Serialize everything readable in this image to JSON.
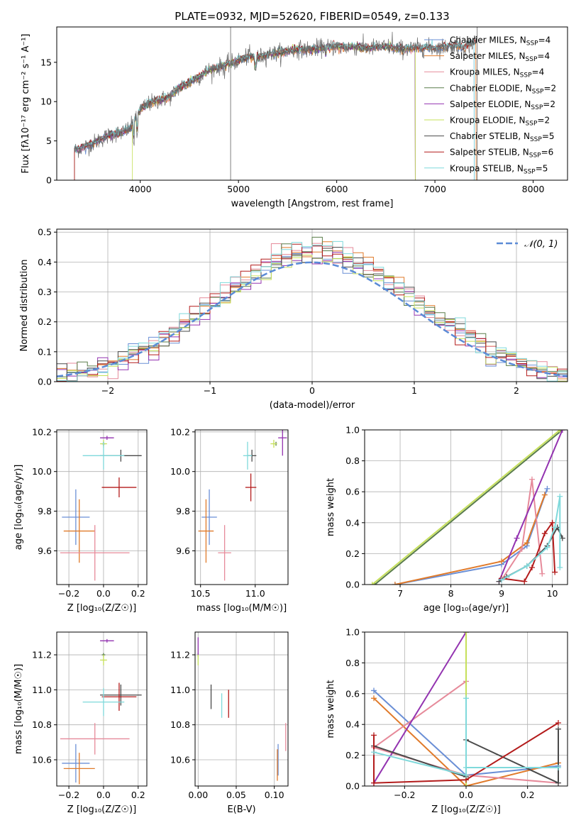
{
  "figure": {
    "title": "PLATE=0932, MJD=52620, FIBERID=0549, z=0.133"
  },
  "legend_items": [
    {
      "name": "Chabrier MILES",
      "nssp": "4"
    },
    {
      "name": "Salpeter MILES",
      "nssp": "4"
    },
    {
      "name": "Kroupa MILES",
      "nssp": "4"
    },
    {
      "name": "Chabrier ELODIE",
      "nssp": "2"
    },
    {
      "name": "Salpeter ELODIE",
      "nssp": "2"
    },
    {
      "name": "Kroupa ELODIE",
      "nssp": "2"
    },
    {
      "name": "Chabrier STELIB",
      "nssp": "5"
    },
    {
      "name": "Salpeter STELIB",
      "nssp": "6"
    },
    {
      "name": "Kroupa STELIB",
      "nssp": "5"
    }
  ],
  "colors": {
    "chab_miles": "#6a8fd6",
    "salp_miles": "#e07a2a",
    "krou_miles": "#e68a9a",
    "chab_elodie": "#5a7d4a",
    "salp_elodie": "#9333b0",
    "krou_elodie": "#c6e05a",
    "chab_stelib": "#4a4a4a",
    "salp_stelib": "#b31b1b",
    "krou_stelib": "#7fd9db",
    "gauss": "#5b8bd6"
  },
  "chart_data": [
    {
      "type": "line",
      "name": "spectrum",
      "xlabel": "wavelength [Angstrom, rest frame]",
      "ylabel": "Flux [fλ10⁻¹⁷ erg cm⁻² s⁻¹ A⁻¹]",
      "xlim": [
        3150,
        8350
      ],
      "ylim": [
        0,
        19.5
      ],
      "xticks": [
        4000,
        5000,
        6000,
        7000,
        8000
      ],
      "yticks": [
        0,
        5,
        10,
        15
      ],
      "continuum": [
        [
          3330,
          3.8
        ],
        [
          3400,
          4.1
        ],
        [
          3500,
          4.6
        ],
        [
          3600,
          5.2
        ],
        [
          3700,
          5.8
        ],
        [
          3800,
          6.0
        ],
        [
          3900,
          6.6
        ],
        [
          4000,
          9.0
        ],
        [
          4100,
          9.8
        ],
        [
          4200,
          10.2
        ],
        [
          4300,
          10.6
        ],
        [
          4400,
          11.8
        ],
        [
          4500,
          12.4
        ],
        [
          4600,
          13.2
        ],
        [
          4700,
          14.0
        ],
        [
          4800,
          14.4
        ],
        [
          4900,
          14.8
        ],
        [
          5000,
          15.2
        ],
        [
          5100,
          15.8
        ],
        [
          5200,
          15.6
        ],
        [
          5300,
          16.0
        ],
        [
          5400,
          16.2
        ],
        [
          5500,
          16.4
        ],
        [
          5600,
          16.7
        ],
        [
          5700,
          16.6
        ],
        [
          5800,
          16.8
        ],
        [
          5900,
          16.9
        ],
        [
          6000,
          17.0
        ],
        [
          6100,
          16.9
        ],
        [
          6200,
          17.0
        ],
        [
          6300,
          16.8
        ],
        [
          6400,
          16.9
        ],
        [
          6500,
          17.0
        ],
        [
          6600,
          16.8
        ],
        [
          6700,
          16.7
        ],
        [
          6800,
          16.8
        ],
        [
          6900,
          16.9
        ],
        [
          7000,
          16.8
        ],
        [
          7100,
          17.0
        ],
        [
          7200,
          17.1
        ],
        [
          7300,
          16.9
        ],
        [
          7400,
          17.6
        ],
        [
          7430,
          17.8
        ]
      ],
      "vlines": [
        4920,
        7430
      ],
      "series_end": {
        "chab_miles": 7400,
        "salp_miles": 7420,
        "krou_miles": 6800,
        "chab_elodie": 6800,
        "salp_elodie": 6800,
        "krou_elodie": 6800,
        "chab_stelib": 7430,
        "salp_stelib": 7430,
        "krou_stelib": 7400
      },
      "series_start": {
        "chab_miles": 3330,
        "salp_miles": 3330,
        "krou_miles": 3330,
        "chab_elodie": 3330,
        "salp_elodie": 3330,
        "krou_elodie": 3920,
        "chab_stelib": 3330,
        "salp_stelib": 3330,
        "krou_stelib": 3330
      }
    },
    {
      "type": "histogram",
      "name": "residuals",
      "xlabel": "(data-model)/error",
      "ylabel": "Normed distribution",
      "xlim": [
        -2.5,
        2.5
      ],
      "ylim": [
        0,
        0.51
      ],
      "xticks": [
        -2,
        -1,
        0,
        1,
        2
      ],
      "yticks": [
        0.0,
        0.1,
        0.2,
        0.3,
        0.4,
        0.5
      ],
      "bin_edges_start": -2.5,
      "bin_width": 0.1,
      "gauss_label": "𝒩(0, 1)"
    },
    {
      "type": "scatter",
      "name": "age_vs_Z",
      "xlabel": "Z [log₁₀(Z/Z☉)]",
      "ylabel": "age  [log₁₀(age/yr)]",
      "xlim": [
        -0.27,
        0.25
      ],
      "ylim": [
        9.43,
        10.21
      ],
      "xticks": [
        -0.2,
        0.0,
        0.2
      ],
      "yticks": [
        9.6,
        9.8,
        10.0,
        10.2
      ],
      "points": [
        {
          "s": "chab_miles",
          "x": -0.16,
          "y": 9.77,
          "xe": 0.08,
          "ye": 0.14
        },
        {
          "s": "salp_miles",
          "x": -0.14,
          "y": 9.7,
          "xe": 0.09,
          "ye": 0.16
        },
        {
          "s": "krou_miles",
          "x": -0.05,
          "y": 9.59,
          "xe": 0.2,
          "ye": 0.14
        },
        {
          "s": "chab_elodie",
          "x": 0.0,
          "y": 10.14,
          "xe": 0.01,
          "ye": 0.01
        },
        {
          "s": "salp_elodie",
          "x": 0.02,
          "y": 10.17,
          "xe": 0.04,
          "ye": 0.01
        },
        {
          "s": "krou_elodie",
          "x": 0.0,
          "y": 10.14,
          "xe": 0.02,
          "ye": 0.02
        },
        {
          "s": "chab_stelib",
          "x": 0.1,
          "y": 10.08,
          "xe": 0.12,
          "ye": 0.03
        },
        {
          "s": "salp_stelib",
          "x": 0.09,
          "y": 9.92,
          "xe": 0.1,
          "ye": 0.05
        },
        {
          "s": "krou_stelib",
          "x": 0.0,
          "y": 10.08,
          "xe": 0.12,
          "ye": 0.07
        }
      ]
    },
    {
      "type": "scatter",
      "name": "age_vs_mass",
      "xlabel": "mass [log₁₀(M/M☉)]",
      "ylabel": "",
      "xlim": [
        10.45,
        11.3
      ],
      "ylim": [
        9.43,
        10.21
      ],
      "xticks": [
        10.5,
        11.0
      ],
      "yticks": [
        9.6,
        9.8,
        10.0,
        10.2
      ],
      "points": [
        {
          "s": "chab_miles",
          "x": 10.58,
          "y": 9.77,
          "xe": 0.07,
          "ye": 0.14
        },
        {
          "s": "salp_miles",
          "x": 10.55,
          "y": 9.7,
          "xe": 0.07,
          "ye": 0.16
        },
        {
          "s": "krou_miles",
          "x": 10.72,
          "y": 9.59,
          "xe": 0.06,
          "ye": 0.14
        },
        {
          "s": "chab_elodie",
          "x": 11.19,
          "y": 10.14,
          "xe": 0.01,
          "ye": 0.01
        },
        {
          "s": "salp_elodie",
          "x": 11.25,
          "y": 10.17,
          "xe": 0.04,
          "ye": 0.09
        },
        {
          "s": "krou_elodie",
          "x": 11.17,
          "y": 10.14,
          "xe": 0.03,
          "ye": 0.02
        },
        {
          "s": "chab_stelib",
          "x": 10.97,
          "y": 10.08,
          "xe": 0.04,
          "ye": 0.03
        },
        {
          "s": "salp_stelib",
          "x": 10.96,
          "y": 9.92,
          "xe": 0.05,
          "ye": 0.07
        },
        {
          "s": "krou_stelib",
          "x": 10.93,
          "y": 10.08,
          "xe": 0.04,
          "ye": 0.07
        }
      ]
    },
    {
      "type": "line",
      "name": "massweight_vs_age",
      "xlabel": "age  [log₁₀(age/yr)]",
      "ylabel": "mass weight",
      "xlim": [
        6.3,
        10.3
      ],
      "ylim": [
        0,
        1
      ],
      "xticks": [
        7,
        8,
        9,
        10
      ],
      "yticks": [
        0.0,
        0.2,
        0.4,
        0.6,
        0.8,
        1.0
      ],
      "series": [
        {
          "s": "chab_miles",
          "pts": [
            [
              6.9,
              0.0
            ],
            [
              9.0,
              0.13
            ],
            [
              9.5,
              0.25
            ],
            [
              9.9,
              0.62
            ]
          ]
        },
        {
          "s": "salp_miles",
          "pts": [
            [
              6.9,
              0.0
            ],
            [
              9.0,
              0.15
            ],
            [
              9.5,
              0.27
            ],
            [
              9.85,
              0.58
            ]
          ]
        },
        {
          "s": "krou_miles",
          "pts": [
            [
              9.0,
              0.03
            ],
            [
              9.4,
              0.23
            ],
            [
              9.6,
              0.68
            ],
            [
              9.8,
              0.07
            ]
          ]
        },
        {
          "s": "chab_elodie",
          "pts": [
            [
              6.5,
              0.0
            ],
            [
              10.2,
              1.0
            ]
          ]
        },
        {
          "s": "salp_elodie",
          "pts": [
            [
              8.95,
              0.02
            ],
            [
              9.3,
              0.3
            ],
            [
              10.2,
              1.0
            ]
          ]
        },
        {
          "s": "krou_elodie",
          "pts": [
            [
              6.45,
              0.0
            ],
            [
              10.15,
              1.0
            ]
          ]
        },
        {
          "s": "chab_stelib",
          "pts": [
            [
              8.95,
              0.02
            ],
            [
              9.1,
              0.05
            ],
            [
              9.5,
              0.12
            ],
            [
              9.9,
              0.25
            ],
            [
              10.1,
              0.37
            ],
            [
              10.2,
              0.3
            ]
          ]
        },
        {
          "s": "salp_stelib",
          "pts": [
            [
              9.0,
              0.04
            ],
            [
              9.45,
              0.02
            ],
            [
              9.6,
              0.11
            ],
            [
              9.85,
              0.33
            ],
            [
              10.0,
              0.4
            ],
            [
              10.05,
              0.08
            ]
          ]
        },
        {
          "s": "krou_stelib",
          "pts": [
            [
              9.0,
              0.03
            ],
            [
              9.5,
              0.12
            ],
            [
              9.9,
              0.24
            ],
            [
              10.05,
              0.37
            ],
            [
              10.15,
              0.57
            ],
            [
              10.15,
              0.11
            ]
          ]
        }
      ]
    },
    {
      "type": "scatter",
      "name": "mass_vs_Z",
      "xlabel": "Z [log₁₀(Z/Z☉)]",
      "ylabel": "mass [log₁₀(M/M☉)]",
      "xlim": [
        -0.27,
        0.25
      ],
      "ylim": [
        10.45,
        11.33
      ],
      "xticks": [
        -0.2,
        0.0,
        0.2
      ],
      "yticks": [
        10.6,
        10.8,
        11.0,
        11.2
      ],
      "points": [
        {
          "s": "chab_miles",
          "x": -0.16,
          "y": 10.58,
          "xe": 0.08,
          "ye": 0.11
        },
        {
          "s": "salp_miles",
          "x": -0.14,
          "y": 10.55,
          "xe": 0.09,
          "ye": 0.09
        },
        {
          "s": "krou_miles",
          "x": -0.05,
          "y": 10.72,
          "xe": 0.2,
          "ye": 0.09
        },
        {
          "s": "chab_elodie",
          "x": 0.0,
          "y": 11.2,
          "xe": 0.01,
          "ye": 0.01
        },
        {
          "s": "salp_elodie",
          "x": 0.02,
          "y": 11.28,
          "xe": 0.04,
          "ye": 0.01
        },
        {
          "s": "krou_elodie",
          "x": 0.0,
          "y": 11.17,
          "xe": 0.02,
          "ye": 0.03
        },
        {
          "s": "chab_stelib",
          "x": 0.1,
          "y": 10.97,
          "xe": 0.12,
          "ye": 0.06
        },
        {
          "s": "salp_stelib",
          "x": 0.09,
          "y": 10.96,
          "xe": 0.1,
          "ye": 0.08
        },
        {
          "s": "krou_stelib",
          "x": 0.0,
          "y": 10.93,
          "xe": 0.12,
          "ye": 0.08
        }
      ]
    },
    {
      "type": "scatter",
      "name": "mass_vs_ebv",
      "xlabel": "E(B-V)",
      "ylabel": "",
      "xlim": [
        -0.004,
        0.118
      ],
      "ylim": [
        10.45,
        11.33
      ],
      "xticks": [
        0.0,
        0.05,
        0.1
      ],
      "yticks": [
        10.6,
        10.8,
        11.0,
        11.2
      ],
      "points": [
        {
          "s": "chab_miles",
          "x": 0.105,
          "y": 10.6,
          "xe": 0.0,
          "ye": 0.09
        },
        {
          "s": "salp_miles",
          "x": 0.104,
          "y": 10.57,
          "xe": 0.0,
          "ye": 0.09
        },
        {
          "s": "krou_miles",
          "x": 0.115,
          "y": 10.73,
          "xe": 0.0,
          "ye": 0.08
        },
        {
          "s": "chab_elodie",
          "x": 0.0,
          "y": 11.2,
          "xe": 0.0,
          "ye": 0.01
        },
        {
          "s": "salp_elodie",
          "x": 0.0,
          "y": 11.25,
          "xe": 0.0,
          "ye": 0.05
        },
        {
          "s": "krou_elodie",
          "x": 0.0,
          "y": 11.17,
          "xe": 0.0,
          "ye": 0.03
        },
        {
          "s": "chab_stelib",
          "x": 0.017,
          "y": 10.96,
          "xe": 0.0,
          "ye": 0.07
        },
        {
          "s": "salp_stelib",
          "x": 0.04,
          "y": 10.92,
          "xe": 0.0,
          "ye": 0.08
        },
        {
          "s": "krou_stelib",
          "x": 0.031,
          "y": 10.91,
          "xe": 0.0,
          "ye": 0.07
        }
      ]
    },
    {
      "type": "line",
      "name": "massweight_vs_Z",
      "xlabel": "Z [log₁₀(Z/Z☉)]",
      "ylabel": "mass weight",
      "xlim": [
        -0.33,
        0.33
      ],
      "ylim": [
        0,
        1
      ],
      "xticks": [
        -0.2,
        0.0,
        0.2
      ],
      "yticks": [
        0.0,
        0.2,
        0.4,
        0.6,
        0.8,
        1.0
      ],
      "series": [
        {
          "s": "chab_miles",
          "pts": [
            [
              -0.3,
              0.62
            ],
            [
              0.0,
              0.07
            ],
            [
              0.3,
              0.13
            ]
          ]
        },
        {
          "s": "salp_miles",
          "pts": [
            [
              -0.3,
              0.57
            ],
            [
              0.0,
              0.0
            ],
            [
              0.3,
              0.15
            ]
          ]
        },
        {
          "s": "krou_miles",
          "pts": [
            [
              0.0,
              0.68
            ],
            [
              -0.3,
              0.25
            ],
            [
              0.0,
              0.07
            ],
            [
              0.3,
              0.02
            ]
          ]
        },
        {
          "s": "chab_elodie",
          "pts": [
            [
              0.0,
              0.0
            ],
            [
              0.0,
              1.0
            ]
          ]
        },
        {
          "s": "salp_elodie",
          "pts": [
            [
              -0.3,
              0.02
            ],
            [
              0.0,
              1.0
            ]
          ]
        },
        {
          "s": "krou_elodie",
          "pts": [
            [
              0.0,
              1.0
            ],
            [
              0.0,
              0.0
            ]
          ]
        },
        {
          "s": "chab_stelib",
          "pts": [
            [
              -0.3,
              0.26
            ],
            [
              0.0,
              0.06
            ],
            [
              0.0,
              0.3
            ],
            [
              0.3,
              0.02
            ],
            [
              0.3,
              0.37
            ]
          ]
        },
        {
          "s": "salp_stelib",
          "pts": [
            [
              -0.3,
              0.33
            ],
            [
              -0.3,
              0.02
            ],
            [
              0.0,
              0.04
            ],
            [
              0.3,
              0.41
            ]
          ]
        },
        {
          "s": "krou_stelib",
          "pts": [
            [
              -0.3,
              0.22
            ],
            [
              0.0,
              0.07
            ],
            [
              0.0,
              0.57
            ],
            [
              0.0,
              0.12
            ],
            [
              0.3,
              0.12
            ]
          ]
        }
      ]
    }
  ]
}
